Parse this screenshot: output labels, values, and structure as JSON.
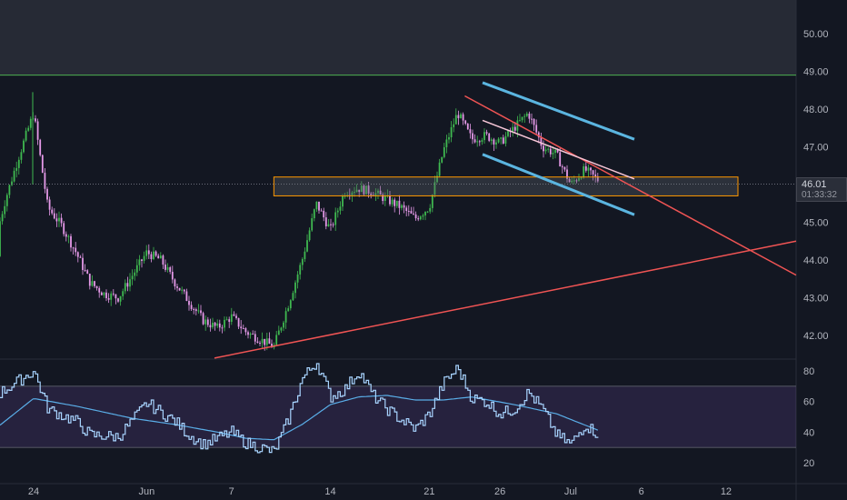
{
  "chart_data": [
    {
      "type": "candlestick",
      "title": "",
      "y_axis": {
        "ticks": [
          "50.00",
          "49.00",
          "48.00",
          "47.00",
          "46.00",
          "45.00",
          "44.00",
          "43.00",
          "42.00"
        ],
        "range": [
          41.4,
          51.0
        ]
      },
      "x_axis": {
        "ticks": [
          "24",
          "Jun",
          "7",
          "14",
          "21",
          "26",
          "Jul",
          "6",
          "12"
        ]
      },
      "current_price": "46.01",
      "countdown": "01:33:32",
      "close_series": [
        {
          "d": "May 21",
          "v": 44.1
        },
        {
          "d": "May 22",
          "v": 45.6
        },
        {
          "d": "May 23",
          "v": 46.8
        },
        {
          "d": "May 24",
          "v": 47.9
        },
        {
          "d": "May 25",
          "v": 45.4
        },
        {
          "d": "May 26",
          "v": 44.9
        },
        {
          "d": "May 27",
          "v": 44.2
        },
        {
          "d": "May 28",
          "v": 43.4
        },
        {
          "d": "May 29",
          "v": 43.1
        },
        {
          "d": "May 30",
          "v": 43.0
        },
        {
          "d": "May 31",
          "v": 43.6
        },
        {
          "d": "Jun 1",
          "v": 44.2
        },
        {
          "d": "Jun 2",
          "v": 44.0
        },
        {
          "d": "Jun 3",
          "v": 43.4
        },
        {
          "d": "Jun 4",
          "v": 42.9
        },
        {
          "d": "Jun 5",
          "v": 42.4
        },
        {
          "d": "Jun 6",
          "v": 42.2
        },
        {
          "d": "Jun 7",
          "v": 42.5
        },
        {
          "d": "Jun 8",
          "v": 42.1
        },
        {
          "d": "Jun 9",
          "v": 41.9
        },
        {
          "d": "Jun 10",
          "v": 41.7
        },
        {
          "d": "Jun 11",
          "v": 42.8
        },
        {
          "d": "Jun 12",
          "v": 44.0
        },
        {
          "d": "Jun 13",
          "v": 45.5
        },
        {
          "d": "Jun 14",
          "v": 44.8
        },
        {
          "d": "Jun 15",
          "v": 45.8
        },
        {
          "d": "Jun 16",
          "v": 45.9
        },
        {
          "d": "Jun 17",
          "v": 45.8
        },
        {
          "d": "Jun 18",
          "v": 45.6
        },
        {
          "d": "Jun 19",
          "v": 45.4
        },
        {
          "d": "Jun 20",
          "v": 45.1
        },
        {
          "d": "Jun 21",
          "v": 45.4
        },
        {
          "d": "Jun 22",
          "v": 46.9
        },
        {
          "d": "Jun 23",
          "v": 47.9
        },
        {
          "d": "Jun 24",
          "v": 47.2
        },
        {
          "d": "Jun 25",
          "v": 47.3
        },
        {
          "d": "Jun 26",
          "v": 47.1
        },
        {
          "d": "Jun 27",
          "v": 47.5
        },
        {
          "d": "Jun 28",
          "v": 47.9
        },
        {
          "d": "Jun 29",
          "v": 47.0
        },
        {
          "d": "Jun 30",
          "v": 46.8
        },
        {
          "d": "Jul 1",
          "v": 46.0
        },
        {
          "d": "Jul 2",
          "v": 46.4
        },
        {
          "d": "Jul 3",
          "v": 46.1
        }
      ],
      "horizontal_lines": [
        {
          "price": 48.9,
          "color": "#4caf50"
        }
      ],
      "zones": [
        {
          "label": "top-shade",
          "from": 48.9,
          "to": 51.0,
          "color": "#363a45"
        },
        {
          "label": "resistance-box",
          "from": 45.7,
          "to": 46.2,
          "color": "#ff9800"
        }
      ],
      "colors": {
        "up": "#3fb950",
        "down": "#e599e8",
        "rsi": "#a8d4ff",
        "rsi_ma": "#5aaee8",
        "trend": "#f05454",
        "channel": "#5bb5e0",
        "inner": "#f8c7d8"
      }
    },
    {
      "type": "line",
      "title": "",
      "y_axis": {
        "ticks": [
          "80",
          "60",
          "40",
          "20"
        ],
        "range": [
          15,
          87
        ]
      },
      "band": [
        30,
        70
      ],
      "rsi_series": [
        {
          "d": "May 21",
          "v": 62
        },
        {
          "d": "May 23",
          "v": 74
        },
        {
          "d": "May 24",
          "v": 80
        },
        {
          "d": "May 25",
          "v": 55
        },
        {
          "d": "May 27",
          "v": 47
        },
        {
          "d": "May 28",
          "v": 38
        },
        {
          "d": "May 30",
          "v": 37
        },
        {
          "d": "Jun 1",
          "v": 59
        },
        {
          "d": "Jun 3",
          "v": 47
        },
        {
          "d": "Jun 4",
          "v": 38
        },
        {
          "d": "Jun 5",
          "v": 32
        },
        {
          "d": "Jun 6",
          "v": 36
        },
        {
          "d": "Jun 7",
          "v": 40
        },
        {
          "d": "Jun 8",
          "v": 33
        },
        {
          "d": "Jun 9",
          "v": 30
        },
        {
          "d": "Jun 10",
          "v": 27
        },
        {
          "d": "Jun 11",
          "v": 48
        },
        {
          "d": "Jun 12",
          "v": 75
        },
        {
          "d": "Jun 13",
          "v": 86
        },
        {
          "d": "Jun 14",
          "v": 63
        },
        {
          "d": "Jun 15",
          "v": 68
        },
        {
          "d": "Jun 16",
          "v": 80
        },
        {
          "d": "Jun 17",
          "v": 64
        },
        {
          "d": "Jun 18",
          "v": 55
        },
        {
          "d": "Jun 19",
          "v": 48
        },
        {
          "d": "Jun 20",
          "v": 42
        },
        {
          "d": "Jun 21",
          "v": 52
        },
        {
          "d": "Jun 22",
          "v": 72
        },
        {
          "d": "Jun 23",
          "v": 82
        },
        {
          "d": "Jun 24",
          "v": 62
        },
        {
          "d": "Jun 25",
          "v": 60
        },
        {
          "d": "Jun 26",
          "v": 52
        },
        {
          "d": "Jun 27",
          "v": 55
        },
        {
          "d": "Jun 28",
          "v": 66
        },
        {
          "d": "Jun 29",
          "v": 55
        },
        {
          "d": "Jun 30",
          "v": 38
        },
        {
          "d": "Jul 1",
          "v": 32
        },
        {
          "d": "Jul 2",
          "v": 45
        },
        {
          "d": "Jul 3",
          "v": 38
        }
      ],
      "rsi_ma_series": [
        {
          "d": "May 21",
          "v": 40
        },
        {
          "d": "May 24",
          "v": 62
        },
        {
          "d": "May 27",
          "v": 57
        },
        {
          "d": "May 31",
          "v": 49
        },
        {
          "d": "Jun 3",
          "v": 45
        },
        {
          "d": "Jun 6",
          "v": 40
        },
        {
          "d": "Jun 8",
          "v": 36
        },
        {
          "d": "Jun 10",
          "v": 35
        },
        {
          "d": "Jun 12",
          "v": 45
        },
        {
          "d": "Jun 14",
          "v": 58
        },
        {
          "d": "Jun 16",
          "v": 63
        },
        {
          "d": "Jun 18",
          "v": 64
        },
        {
          "d": "Jun 20",
          "v": 61
        },
        {
          "d": "Jun 22",
          "v": 61
        },
        {
          "d": "Jun 24",
          "v": 63
        },
        {
          "d": "Jun 27",
          "v": 58
        },
        {
          "d": "Jun 30",
          "v": 52
        },
        {
          "d": "Jul 3",
          "v": 41
        }
      ]
    }
  ]
}
